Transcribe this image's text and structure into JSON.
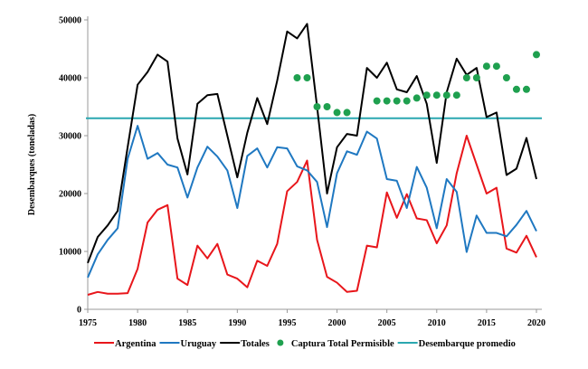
{
  "chart_data": {
    "type": "line",
    "title": "",
    "xlabel": "",
    "ylabel": "Desembarques (toneladas)",
    "xlim": [
      1975,
      2020
    ],
    "ylim": [
      0,
      50000
    ],
    "x_ticks": [
      1975,
      1980,
      1985,
      1990,
      1995,
      2000,
      2005,
      2010,
      2015,
      2020
    ],
    "y_ticks": [
      0,
      10000,
      20000,
      30000,
      40000,
      50000
    ],
    "grid": false,
    "legend_placement": "bottom",
    "x": [
      1975,
      1976,
      1977,
      1978,
      1979,
      1980,
      1981,
      1982,
      1983,
      1984,
      1985,
      1986,
      1987,
      1988,
      1989,
      1990,
      1991,
      1992,
      1993,
      1994,
      1995,
      1996,
      1997,
      1998,
      1999,
      2000,
      2001,
      2002,
      2003,
      2004,
      2005,
      2006,
      2007,
      2008,
      2009,
      2010,
      2011,
      2012,
      2013,
      2014,
      2015,
      2016,
      2017,
      2018,
      2019,
      2020
    ],
    "series": [
      {
        "name": "Argentina",
        "color": "#e8161b",
        "kind": "line",
        "values": [
          2500,
          3000,
          2700,
          2700,
          2800,
          7000,
          15000,
          17200,
          18000,
          5300,
          4200,
          11000,
          8800,
          11300,
          6000,
          5300,
          3800,
          8400,
          7500,
          11300,
          20400,
          22000,
          25700,
          12000,
          5600,
          4600,
          3000,
          3200,
          11000,
          10700,
          20200,
          15800,
          19900,
          15700,
          15400,
          11400,
          14500,
          23500,
          30000,
          25000,
          20000,
          21000,
          10500,
          9800,
          12700,
          9000
        ]
      },
      {
        "name": "Uruguay",
        "color": "#1f78c1",
        "kind": "line",
        "values": [
          5500,
          9500,
          12000,
          14000,
          26000,
          31700,
          26000,
          27000,
          25000,
          24500,
          19300,
          24500,
          28100,
          26400,
          24000,
          17500,
          26500,
          27800,
          24500,
          28000,
          27800,
          24700,
          24000,
          22000,
          14200,
          23500,
          27300,
          26700,
          30700,
          29500,
          22500,
          22200,
          17500,
          24600,
          21000,
          14000,
          22500,
          20300,
          9900,
          16200,
          13200,
          13200,
          12600,
          14600,
          17000,
          13500
        ]
      },
      {
        "name": "Totales",
        "color": "#000000",
        "kind": "line",
        "values": [
          8000,
          12500,
          14500,
          17000,
          28000,
          38800,
          41000,
          44000,
          42800,
          29500,
          23300,
          35500,
          37000,
          37200,
          30000,
          22800,
          30500,
          36500,
          32000,
          39500,
          48000,
          46800,
          49300,
          35000,
          20000,
          28000,
          30300,
          30000,
          41700,
          40000,
          42600,
          38000,
          37500,
          40300,
          35500,
          25300,
          37500,
          43300,
          40500,
          41700,
          33200,
          34000,
          23200,
          24300,
          29600,
          22500
        ]
      },
      {
        "name": "Captura Total Permisible",
        "color": "#1fa04f",
        "kind": "scatter",
        "x": [
          1996,
          1997,
          1998,
          1999,
          2000,
          2001,
          2004,
          2005,
          2006,
          2007,
          2008,
          2009,
          2010,
          2011,
          2012,
          2013,
          2014,
          2015,
          2016,
          2017,
          2018,
          2019,
          2020
        ],
        "values": [
          40000,
          40000,
          35000,
          35000,
          34000,
          34000,
          36000,
          36000,
          36000,
          36000,
          36500,
          37000,
          37000,
          37000,
          37000,
          40000,
          40000,
          42000,
          42000,
          40000,
          38000,
          38000,
          44000
        ]
      },
      {
        "name": "Desembarque promedio",
        "color": "#2aa7b0",
        "kind": "hline",
        "value": 33000
      }
    ]
  }
}
